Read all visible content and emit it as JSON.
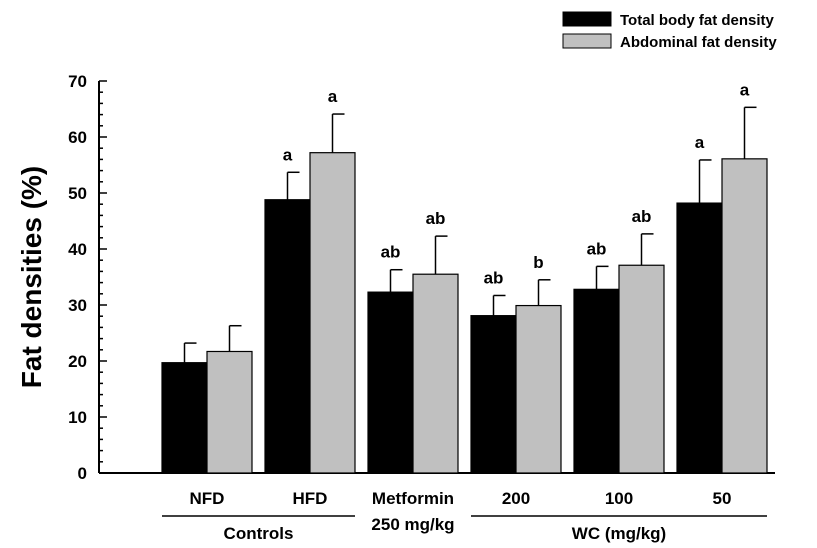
{
  "chart_data": {
    "type": "bar",
    "title": "",
    "ylabel": "Fat densities (%)",
    "ylim": [
      0,
      70
    ],
    "yticks": [
      0,
      10,
      20,
      30,
      40,
      50,
      60,
      70
    ],
    "y_minor_step": 2,
    "categories": [
      "NFD",
      "HFD",
      "Metformin",
      "200",
      "100",
      "50"
    ],
    "category_sublabels": [
      "",
      "",
      "250 mg/kg",
      "",
      "",
      ""
    ],
    "groups": [
      {
        "label": "Controls",
        "from": 0,
        "to": 1
      },
      {
        "label": "WC (mg/kg)",
        "from": 3,
        "to": 5
      }
    ],
    "series": [
      {
        "name": "Total body fat density",
        "color": "#000000",
        "values": [
          19.7,
          48.8,
          32.3,
          28.1,
          32.8,
          48.2
        ],
        "errors": [
          3.5,
          4.9,
          4.0,
          3.6,
          4.1,
          7.7
        ],
        "significance": [
          "",
          "a",
          "ab",
          "ab",
          "ab",
          "a"
        ]
      },
      {
        "name": "Abdominal fat density",
        "color": "#c0c0c0",
        "values": [
          21.7,
          57.2,
          35.5,
          29.9,
          37.1,
          56.1
        ],
        "errors": [
          4.6,
          6.9,
          6.8,
          4.6,
          5.6,
          9.2
        ],
        "significance": [
          "",
          "a",
          "ab",
          "b",
          "ab",
          "a"
        ]
      }
    ],
    "legend": "top-right",
    "grid": false
  }
}
